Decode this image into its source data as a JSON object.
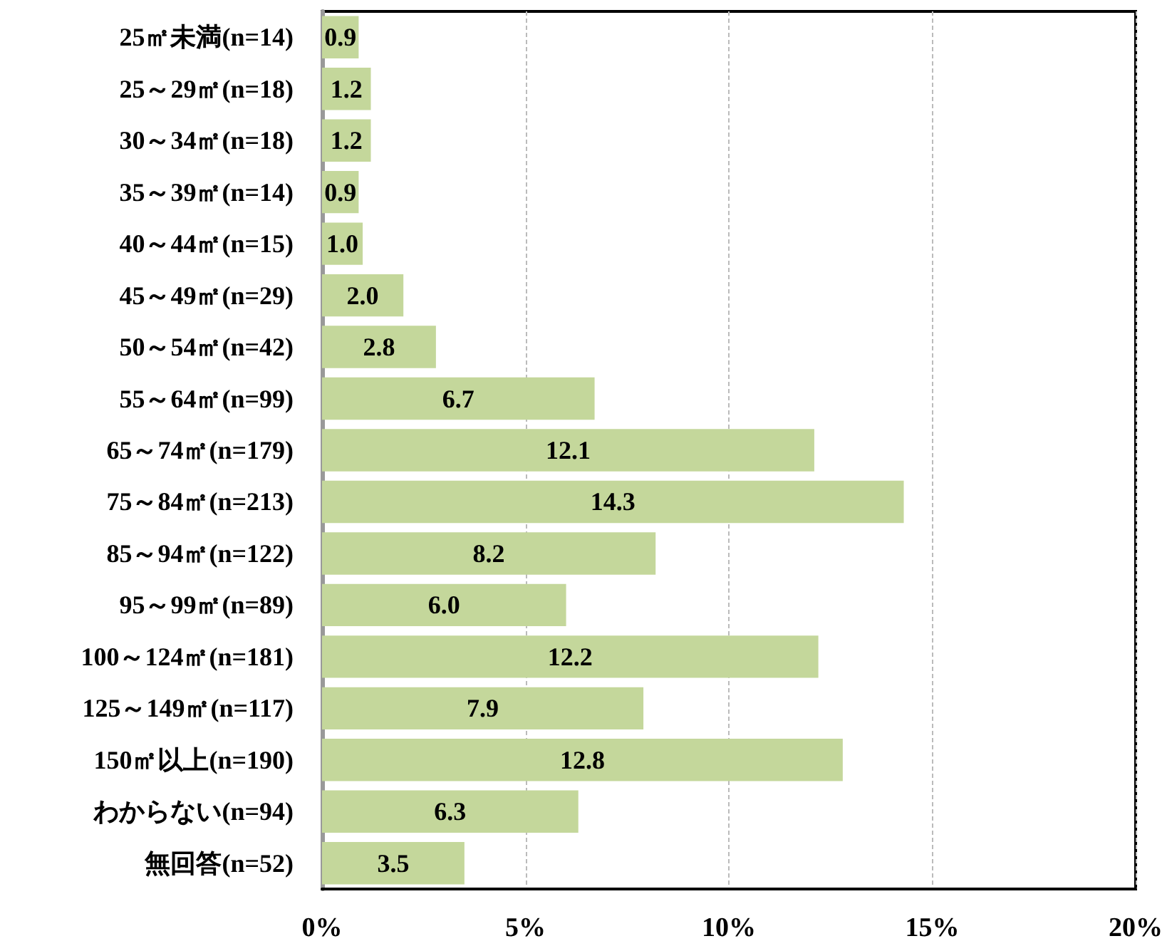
{
  "chart_data": {
    "type": "bar",
    "orientation": "horizontal",
    "categories": [
      "25㎡未満(n=14)",
      "25～29㎡(n=18)",
      "30～34㎡(n=18)",
      "35～39㎡(n=14)",
      "40～44㎡(n=15)",
      "45～49㎡(n=29)",
      "50～54㎡(n=42)",
      "55～64㎡(n=99)",
      "65～74㎡(n=179)",
      "75～84㎡(n=213)",
      "85～94㎡(n=122)",
      "95～99㎡(n=89)",
      "100～124㎡(n=181)",
      "125～149㎡(n=117)",
      "150㎡以上(n=190)",
      "わからない(n=94)",
      "無回答(n=52)"
    ],
    "values": [
      0.9,
      1.2,
      1.2,
      0.9,
      1.0,
      2.0,
      2.8,
      6.7,
      12.1,
      14.3,
      8.2,
      6.0,
      12.2,
      7.9,
      12.8,
      6.3,
      3.5
    ],
    "value_labels": [
      "0.9",
      "1.2",
      "1.2",
      "0.9",
      "1.0",
      "2.0",
      "2.8",
      "6.7",
      "12.1",
      "14.3",
      "8.2",
      "6.0",
      "12.2",
      "7.9",
      "12.8",
      "6.3",
      "3.5"
    ],
    "color": "#c4d79b",
    "xlim": [
      0,
      20
    ],
    "xticks": [
      {
        "value": 0,
        "label": "0%"
      },
      {
        "value": 5,
        "label": "5%"
      },
      {
        "value": 10,
        "label": "10%"
      },
      {
        "value": 15,
        "label": "15%"
      },
      {
        "value": 20,
        "label": "20%"
      }
    ],
    "grid": "x"
  }
}
